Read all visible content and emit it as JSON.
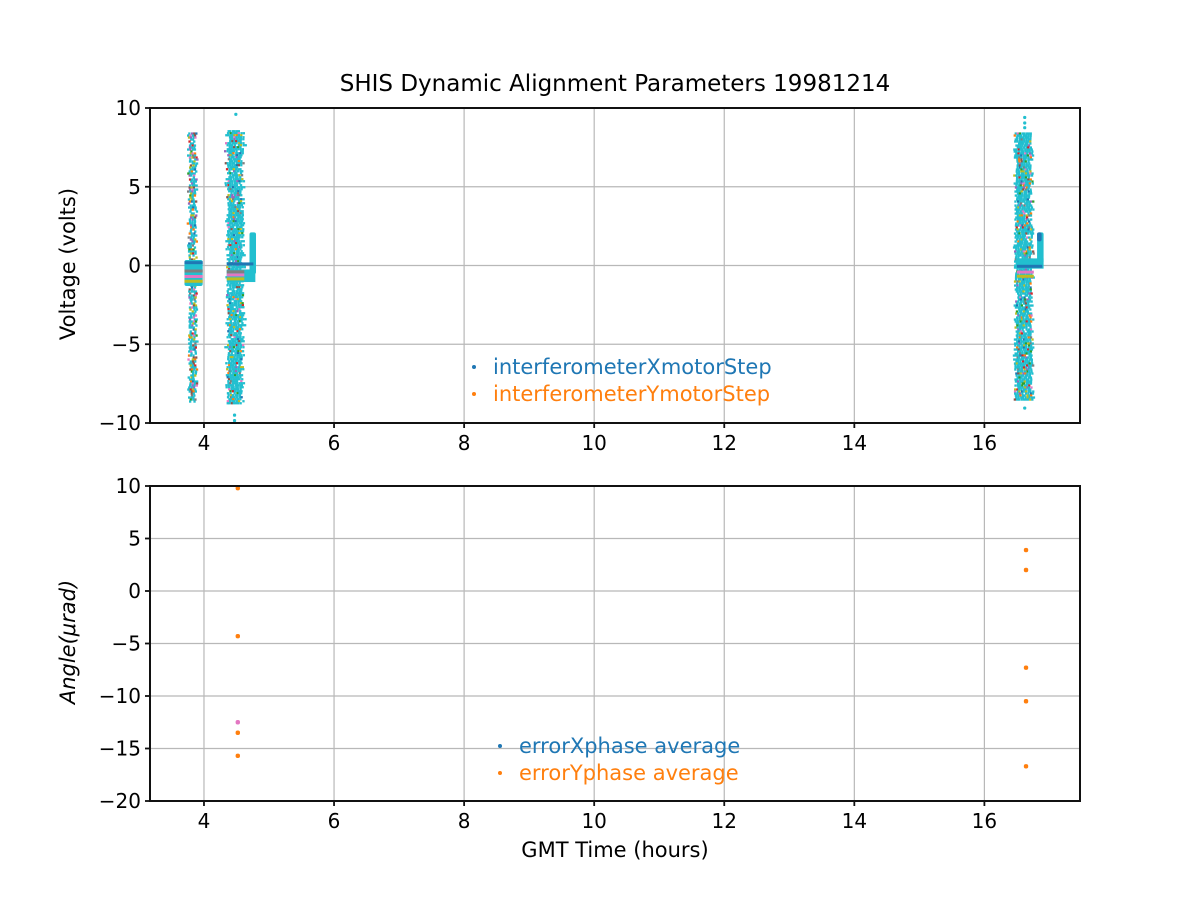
{
  "figure": {
    "background": "#ffffff",
    "grid_color": "#b8b8b8",
    "spine_color": "#111111"
  },
  "chart_data": [
    {
      "type": "scatter",
      "title": "SHIS Dynamic Alignment Parameters 19981214",
      "xlabel": "",
      "ylabel": "Voltage (volts)",
      "xlim": [
        3.17,
        17.47
      ],
      "ylim": [
        -10,
        10
      ],
      "xticks": [
        4,
        6,
        8,
        10,
        12,
        14,
        16
      ],
      "yticks": [
        -10,
        -5,
        0,
        5,
        10
      ],
      "grid": true,
      "legend": {
        "loc": "lower center",
        "entries": [
          {
            "label": "interferometerXmotorStep",
            "color": "#1f77b4"
          },
          {
            "label": "interferometerYmotorStep",
            "color": "#ff7f0e"
          }
        ]
      },
      "palette": {
        "dominant": "#22bfcf",
        "specks": [
          "#bcbd22",
          "#bcbd22",
          "#e377c2",
          "#7f7f7f",
          "#d62728",
          "#1f77b4",
          "#9467bd",
          "#2ca02c",
          "#8c564b",
          "#ff7f0e"
        ]
      },
      "bands": [
        {
          "x_center": 3.81,
          "x_width": 0.1,
          "y_min": -8.6,
          "y_max": 8.45,
          "density": 0.86,
          "speck_fraction": 0.42,
          "blob": {
            "x_min": 3.7,
            "x_max": 3.98,
            "y_min": -1.3,
            "y_max": 0.35
          }
        },
        {
          "x_center": 4.465,
          "x_width": 0.23,
          "y_min": -8.7,
          "y_max": 8.6,
          "density": 0.97,
          "speck_fraction": 0.2,
          "arm": {
            "x_min": 4.7,
            "x_max": 4.8,
            "y_min": -0.55,
            "y_max": 2.1
          },
          "bridge": {
            "x_min": 4.35,
            "x_max": 4.79,
            "y_min": -1.05,
            "y_max": -0.25
          },
          "outliers": [
            [
              4.49,
              9.6
            ],
            [
              4.47,
              -9.5
            ],
            [
              4.47,
              -9.85
            ]
          ]
        },
        {
          "x_center": 16.59,
          "x_width": 0.24,
          "y_min": -8.5,
          "y_max": 8.45,
          "density": 0.97,
          "speck_fraction": 0.2,
          "arm": {
            "x_min": 16.81,
            "x_max": 16.91,
            "y_min": 0.1,
            "y_max": 2.1,
            "cap_color": "#1f77b4"
          },
          "bridge": {
            "x_min": 16.48,
            "x_max": 16.91,
            "y_min": -0.2,
            "y_max": 0.45
          },
          "outliers": [
            [
              16.62,
              9.4
            ],
            [
              16.62,
              9.05
            ],
            [
              16.62,
              8.75
            ],
            [
              16.62,
              -9.05
            ]
          ]
        }
      ],
      "stripes": [
        {
          "x_min": 3.7,
          "x_max": 3.98,
          "y": 0.18,
          "color": "#1f77b4"
        },
        {
          "x_min": 3.7,
          "x_max": 3.98,
          "y": -0.35,
          "color": "#7f7f7f"
        },
        {
          "x_min": 3.7,
          "x_max": 3.98,
          "y": -0.7,
          "color": "#e377c2"
        },
        {
          "x_min": 3.7,
          "x_max": 3.98,
          "y": -1.0,
          "color": "#bcbd22"
        },
        {
          "x_min": 4.35,
          "x_max": 4.76,
          "y": 0.1,
          "color": "#1f77b4"
        },
        {
          "x_min": 4.35,
          "x_max": 4.62,
          "y": -0.4,
          "color": "#7f7f7f"
        },
        {
          "x_min": 4.35,
          "x_max": 4.62,
          "y": -0.6,
          "color": "#e377c2"
        },
        {
          "x_min": 4.35,
          "x_max": 4.62,
          "y": -0.85,
          "color": "#bcbd22"
        },
        {
          "x_min": 16.5,
          "x_max": 16.89,
          "y": -0.05,
          "color": "#1f77b4"
        },
        {
          "x_min": 16.5,
          "x_max": 16.76,
          "y": -0.42,
          "color": "#e377c2"
        },
        {
          "x_min": 16.5,
          "x_max": 16.76,
          "y": -0.68,
          "color": "#bcbd22"
        }
      ]
    },
    {
      "type": "scatter",
      "xlabel": "GMT Time (hours)",
      "ylabel": "Angle(μrad)",
      "xlim": [
        3.17,
        17.47
      ],
      "ylim": [
        -20,
        10
      ],
      "xticks": [
        4,
        6,
        8,
        10,
        12,
        14,
        16
      ],
      "yticks": [
        -20,
        -15,
        -10,
        -5,
        0,
        5,
        10
      ],
      "grid": true,
      "legend": {
        "loc": "lower center",
        "entries": [
          {
            "label": "errorXphase average",
            "color": "#1f77b4"
          },
          {
            "label": "errorYphase average",
            "color": "#ff7f0e"
          }
        ]
      },
      "points": [
        {
          "x": 4.52,
          "y": 9.95,
          "series": "errorYphase average",
          "color": "#ff7f0e"
        },
        {
          "x": 4.52,
          "y": -4.3,
          "series": "errorYphase average",
          "color": "#ff7f0e"
        },
        {
          "x": 4.52,
          "y": -12.5,
          "series": "unlabeled",
          "color": "#e377c2"
        },
        {
          "x": 4.52,
          "y": -13.5,
          "series": "errorYphase average",
          "color": "#ff7f0e"
        },
        {
          "x": 4.52,
          "y": -15.7,
          "series": "errorYphase average",
          "color": "#ff7f0e"
        },
        {
          "x": 16.64,
          "y": 3.9,
          "series": "errorYphase average",
          "color": "#ff7f0e"
        },
        {
          "x": 16.64,
          "y": 2.0,
          "series": "errorYphase average",
          "color": "#ff7f0e"
        },
        {
          "x": 16.64,
          "y": -7.3,
          "series": "errorYphase average",
          "color": "#ff7f0e"
        },
        {
          "x": 16.64,
          "y": -10.5,
          "series": "errorYphase average",
          "color": "#ff7f0e"
        },
        {
          "x": 16.64,
          "y": -16.7,
          "series": "errorYphase average",
          "color": "#ff7f0e"
        }
      ]
    }
  ]
}
